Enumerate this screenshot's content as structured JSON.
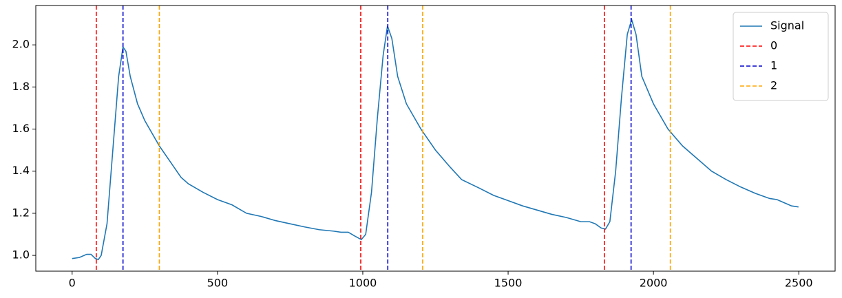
{
  "chart_data": {
    "type": "line",
    "xlim": [
      -125,
      2625
    ],
    "xticks": [
      0,
      500,
      1000,
      1500,
      2000,
      2500
    ],
    "ylim": [
      0.925,
      2.187
    ],
    "yticks": [
      {
        "value": 1.0,
        "label": "1.0"
      },
      {
        "value": 1.2,
        "label": "1.2"
      },
      {
        "value": 1.4,
        "label": "1.4"
      },
      {
        "value": 1.6,
        "label": "1.6"
      },
      {
        "value": 1.8,
        "label": "1.8"
      },
      {
        "value": 2.0,
        "label": "2.0"
      }
    ],
    "legend": "upper right",
    "series": [
      {
        "name": "Signal",
        "color": "#1f77b4",
        "x": [
          0,
          25,
          50,
          65,
          80,
          90,
          100,
          120,
          140,
          160,
          175,
          185,
          200,
          225,
          250,
          300,
          350,
          375,
          400,
          450,
          500,
          550,
          600,
          650,
          700,
          750,
          800,
          850,
          900,
          925,
          950,
          975,
          995,
          1010,
          1030,
          1050,
          1070,
          1085,
          1100,
          1120,
          1150,
          1200,
          1250,
          1300,
          1340,
          1400,
          1450,
          1500,
          1550,
          1600,
          1650,
          1700,
          1750,
          1780,
          1800,
          1820,
          1835,
          1850,
          1870,
          1890,
          1910,
          1925,
          1940,
          1960,
          2000,
          2050,
          2100,
          2150,
          2200,
          2250,
          2300,
          2350,
          2400,
          2425,
          2450,
          2475,
          2499
        ],
        "values": [
          0.985,
          0.99,
          1.005,
          1.005,
          0.985,
          0.98,
          1.0,
          1.15,
          1.5,
          1.85,
          1.99,
          1.97,
          1.85,
          1.72,
          1.64,
          1.52,
          1.42,
          1.37,
          1.34,
          1.3,
          1.265,
          1.24,
          1.2,
          1.185,
          1.165,
          1.15,
          1.135,
          1.122,
          1.115,
          1.11,
          1.11,
          1.09,
          1.075,
          1.1,
          1.3,
          1.65,
          1.95,
          2.09,
          2.03,
          1.85,
          1.72,
          1.6,
          1.5,
          1.42,
          1.36,
          1.32,
          1.285,
          1.26,
          1.235,
          1.215,
          1.195,
          1.18,
          1.16,
          1.16,
          1.15,
          1.13,
          1.125,
          1.16,
          1.4,
          1.75,
          2.05,
          2.12,
          2.05,
          1.85,
          1.72,
          1.6,
          1.52,
          1.46,
          1.4,
          1.36,
          1.325,
          1.295,
          1.27,
          1.265,
          1.25,
          1.235,
          1.23
        ]
      }
    ],
    "vlines": [
      {
        "name": "0",
        "color": "#ff0000",
        "values": [
          83,
          993,
          1831
        ]
      },
      {
        "name": "1",
        "color": "#0000cc",
        "values": [
          175,
          1086,
          1923
        ]
      },
      {
        "name": "2",
        "color": "#ffa500",
        "values": [
          300,
          1206,
          2058
        ]
      }
    ]
  }
}
